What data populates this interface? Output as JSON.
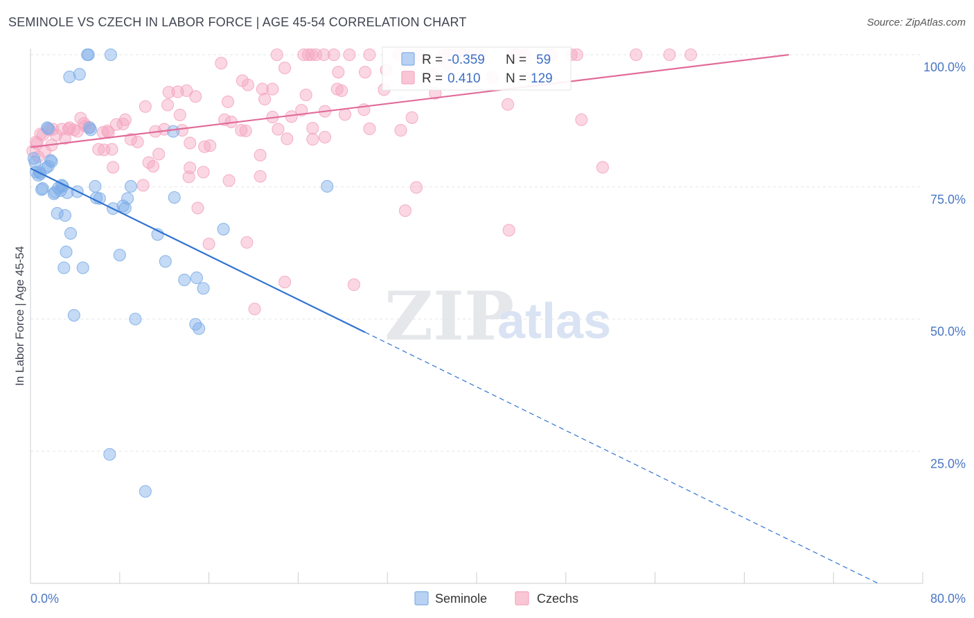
{
  "title": "SEMINOLE VS CZECH IN LABOR FORCE | AGE 45-54 CORRELATION CHART",
  "source": "Source: ZipAtlas.com",
  "watermark": {
    "zip": "ZIP",
    "atlas": "atlas"
  },
  "colors": {
    "seminole": "#7eaee8",
    "seminole_line": "#2f72d1",
    "czechs": "#f4a6c0",
    "czechs_line": "#e16b98",
    "grid": "#e3e6ea",
    "tick_label": "#4a76c4"
  },
  "legend": {
    "r_label": "R =",
    "n_label": "N =",
    "rows": [
      {
        "series": "Seminole",
        "r": "-0.359",
        "n": "59"
      },
      {
        "series": "Czechs",
        "r": "0.410",
        "n": "129"
      }
    ]
  },
  "chart_data": {
    "type": "scatter",
    "title": "SEMINOLE VS CZECH IN LABOR FORCE | AGE 45-54 CORRELATION CHART",
    "xlabel": "",
    "ylabel": "In Labor Force | Age 45-54",
    "xlim": [
      0,
      80
    ],
    "ylim": [
      0,
      100
    ],
    "x_tick_labels": [
      "0.0%",
      "80.0%"
    ],
    "y_ticks": [
      25,
      50,
      75,
      100
    ],
    "y_tick_labels": [
      "25.0%",
      "50.0%",
      "75.0%",
      "100.0%"
    ],
    "grid": true,
    "legend_position": "bottom",
    "series": [
      {
        "name": "Seminole",
        "r": -0.359,
        "n": 59,
        "trend": {
          "x0": 0,
          "y0": 78.5,
          "x1": 30,
          "y1": 47.5,
          "dashed_to_x": 76,
          "dashed_to_y": 0
        },
        "points": [
          [
            5.1,
            100
          ],
          [
            5.2,
            100
          ],
          [
            7.2,
            100
          ],
          [
            4.4,
            96.3
          ],
          [
            3.5,
            95.8
          ],
          [
            1.5,
            86.2
          ],
          [
            1.6,
            86
          ],
          [
            5.3,
            86.2
          ],
          [
            5.4,
            85.8
          ],
          [
            12.8,
            85.5
          ],
          [
            0.3,
            80.4
          ],
          [
            0.4,
            79.7
          ],
          [
            1.9,
            79.8
          ],
          [
            1.6,
            78.9
          ],
          [
            1.4,
            78.6
          ],
          [
            0.5,
            77.8
          ],
          [
            0.9,
            77.5
          ],
          [
            0.7,
            77.2
          ],
          [
            2.8,
            75.3
          ],
          [
            2.9,
            75.1
          ],
          [
            2.5,
            74.8
          ],
          [
            5.8,
            75.1
          ],
          [
            9.0,
            75.1
          ],
          [
            26.6,
            75.1
          ],
          [
            1.1,
            74.7
          ],
          [
            1.0,
            74.5
          ],
          [
            2.2,
            74.0
          ],
          [
            3.3,
            73.9
          ],
          [
            4.2,
            74.1
          ],
          [
            2.1,
            73.7
          ],
          [
            6.2,
            72.8
          ],
          [
            8.7,
            72.8
          ],
          [
            8.3,
            71.4
          ],
          [
            8.5,
            71.0
          ],
          [
            7.4,
            70.9
          ],
          [
            2.4,
            70.0
          ],
          [
            3.1,
            69.6
          ],
          [
            17.3,
            67.0
          ],
          [
            3.6,
            66.2
          ],
          [
            11.4,
            66.0
          ],
          [
            3.2,
            62.7
          ],
          [
            8.0,
            62.1
          ],
          [
            12.1,
            60.9
          ],
          [
            3.0,
            59.7
          ],
          [
            4.7,
            59.7
          ],
          [
            13.8,
            57.4
          ],
          [
            14.9,
            57.8
          ],
          [
            15.5,
            55.8
          ],
          [
            3.9,
            50.7
          ],
          [
            9.4,
            50.0
          ],
          [
            14.8,
            49.0
          ],
          [
            15.1,
            48.2
          ],
          [
            7.1,
            24.4
          ],
          [
            10.3,
            17.4
          ],
          [
            0.8,
            77.8
          ],
          [
            2.7,
            74.3
          ],
          [
            1.8,
            80.0
          ],
          [
            12.9,
            73.0
          ],
          [
            5.9,
            72.9
          ]
        ]
      },
      {
        "name": "Czechs",
        "r": 0.41,
        "n": 129,
        "trend": {
          "x0": 0,
          "y0": 82.5,
          "x1": 68,
          "y1": 100
        },
        "points": [
          [
            22.1,
            100
          ],
          [
            24.5,
            100
          ],
          [
            24.9,
            100
          ],
          [
            25.2,
            100
          ],
          [
            25.6,
            100
          ],
          [
            26.3,
            100
          ],
          [
            27.2,
            100
          ],
          [
            28.6,
            100
          ],
          [
            30.4,
            100
          ],
          [
            33.0,
            100
          ],
          [
            34.8,
            100
          ],
          [
            37.1,
            100
          ],
          [
            37.6,
            100
          ],
          [
            38.7,
            100
          ],
          [
            39.3,
            100
          ],
          [
            40.2,
            100
          ],
          [
            43.3,
            100
          ],
          [
            43.6,
            100
          ],
          [
            44.3,
            100
          ],
          [
            46.7,
            100
          ],
          [
            48.5,
            100
          ],
          [
            49.0,
            100
          ],
          [
            54.3,
            100
          ],
          [
            57.3,
            100
          ],
          [
            59.2,
            100
          ],
          [
            17.1,
            98.4
          ],
          [
            22.8,
            97.5
          ],
          [
            27.6,
            96.7
          ],
          [
            30.0,
            96.7
          ],
          [
            31.9,
            97.1
          ],
          [
            33.8,
            98.3
          ],
          [
            37.4,
            98.1
          ],
          [
            36.0,
            96.2
          ],
          [
            41.4,
            95.7
          ],
          [
            19.0,
            95.1
          ],
          [
            19.5,
            94.3
          ],
          [
            20.8,
            93.5
          ],
          [
            21.7,
            93.5
          ],
          [
            12.4,
            92.9
          ],
          [
            13.2,
            93.0
          ],
          [
            14.0,
            93.2
          ],
          [
            14.8,
            92.1
          ],
          [
            24.7,
            92.4
          ],
          [
            27.5,
            93.5
          ],
          [
            31.7,
            93.4
          ],
          [
            21.0,
            91.6
          ],
          [
            17.7,
            91.1
          ],
          [
            10.3,
            90.2
          ],
          [
            12.3,
            90.5
          ],
          [
            42.8,
            90.6
          ],
          [
            26.4,
            89.3
          ],
          [
            28.2,
            88.7
          ],
          [
            29.9,
            89.6
          ],
          [
            21.7,
            88.2
          ],
          [
            23.4,
            88.3
          ],
          [
            34.2,
            88.1
          ],
          [
            8.5,
            87.7
          ],
          [
            17.4,
            87.7
          ],
          [
            18.0,
            87.3
          ],
          [
            7.7,
            86.8
          ],
          [
            8.3,
            86.9
          ],
          [
            4.9,
            86.5
          ],
          [
            5.2,
            86.3
          ],
          [
            3.5,
            86.2
          ],
          [
            3.4,
            85.9
          ],
          [
            3.9,
            85.8
          ],
          [
            2.0,
            85.9
          ],
          [
            1.7,
            85.8
          ],
          [
            2.8,
            85.9
          ],
          [
            0.9,
            85.0
          ],
          [
            2.3,
            84.8
          ],
          [
            13.6,
            85.7
          ],
          [
            18.9,
            85.7
          ],
          [
            19.3,
            85.6
          ],
          [
            22.2,
            85.9
          ],
          [
            25.3,
            86.1
          ],
          [
            30.4,
            86.0
          ],
          [
            33.2,
            85.7
          ],
          [
            4.2,
            85.5
          ],
          [
            6.5,
            85.3
          ],
          [
            7.0,
            85.3
          ],
          [
            11.2,
            85.5
          ],
          [
            12.0,
            85.9
          ],
          [
            9.0,
            84.0
          ],
          [
            9.6,
            83.5
          ],
          [
            23.0,
            84.1
          ],
          [
            25.3,
            84.0
          ],
          [
            26.4,
            84.4
          ],
          [
            14.3,
            83.3
          ],
          [
            3.1,
            84.2
          ],
          [
            0.5,
            83.5
          ],
          [
            0.6,
            83.2
          ],
          [
            1.9,
            82.9
          ],
          [
            6.1,
            82.1
          ],
          [
            6.6,
            82.0
          ],
          [
            7.3,
            82.1
          ],
          [
            11.5,
            81.2
          ],
          [
            15.6,
            82.6
          ],
          [
            16.1,
            82.8
          ],
          [
            0.2,
            81.8
          ],
          [
            1.3,
            81.7
          ],
          [
            0.7,
            80.7
          ],
          [
            20.6,
            81.0
          ],
          [
            10.6,
            79.6
          ],
          [
            11.0,
            78.9
          ],
          [
            14.3,
            78.6
          ],
          [
            7.4,
            78.7
          ],
          [
            51.3,
            78.7
          ],
          [
            15.5,
            77.8
          ],
          [
            17.8,
            76.2
          ],
          [
            20.6,
            77.0
          ],
          [
            14.2,
            76.9
          ],
          [
            10.1,
            75.3
          ],
          [
            34.6,
            74.9
          ],
          [
            15.0,
            71.0
          ],
          [
            33.6,
            70.5
          ],
          [
            42.9,
            66.8
          ],
          [
            16.0,
            64.2
          ],
          [
            19.4,
            64.5
          ],
          [
            22.8,
            57.0
          ],
          [
            29.0,
            56.5
          ],
          [
            20.1,
            51.9
          ],
          [
            49.4,
            87.7
          ],
          [
            4.8,
            87.0
          ],
          [
            4.5,
            88.0
          ],
          [
            1.1,
            84.8
          ],
          [
            6.9,
            85.6
          ],
          [
            27.9,
            93.2
          ],
          [
            36.3,
            92.7
          ],
          [
            24.3,
            89.5
          ],
          [
            13.4,
            88.6
          ]
        ]
      }
    ]
  }
}
